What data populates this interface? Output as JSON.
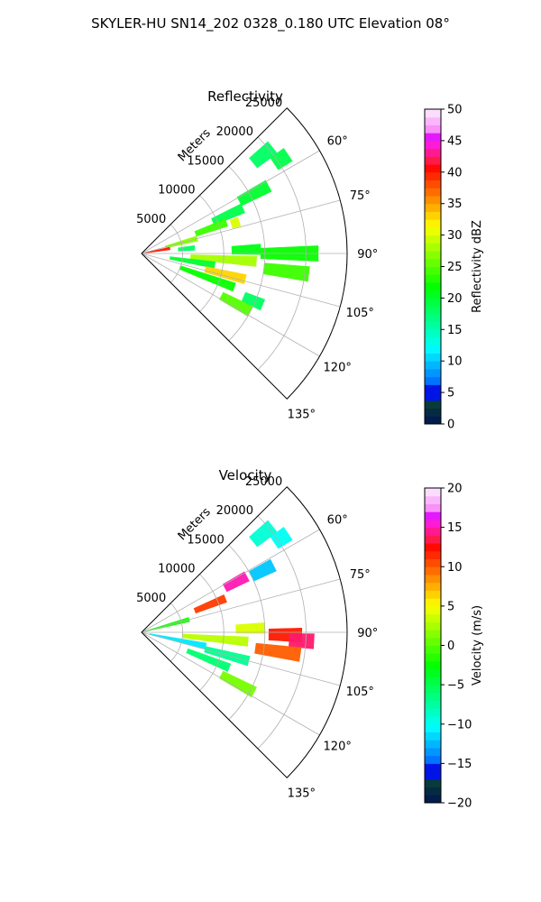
{
  "figure": {
    "suptitle": "SKYLER-HU  SN14_202  0328_0.180 UTC Elevation 08°"
  },
  "chart_data": [
    {
      "type": "heatmap",
      "title": "Reflectivity",
      "projection": "polar-sector",
      "range_axis_label": "Meters",
      "range_ticks": [
        "5000",
        "10000",
        "15000",
        "20000",
        "25000"
      ],
      "range_tick_values": [
        5000,
        10000,
        15000,
        20000,
        25000
      ],
      "range_max": 25000,
      "azimuth_ticks": [
        "60°",
        "75°",
        "90°",
        "105°",
        "120°",
        "135°"
      ],
      "azimuth_tick_values": [
        60,
        75,
        90,
        105,
        120,
        135
      ],
      "azimuth_range": [
        45,
        135
      ],
      "grid": true,
      "colorbar": {
        "label": "Reflectivity dBZ",
        "min": 0,
        "max": 50,
        "ticks": [
          "0",
          "5",
          "10",
          "15",
          "20",
          "25",
          "30",
          "35",
          "40",
          "45",
          "50"
        ],
        "tick_values": [
          0,
          5,
          10,
          15,
          20,
          25,
          30,
          35,
          40,
          45,
          50
        ]
      },
      "echoes": [
        {
          "az": 51,
          "r0": 17500,
          "r1": 20500,
          "v": 18
        },
        {
          "az": 56,
          "r0": 19500,
          "r1": 21500,
          "v": 19
        },
        {
          "az": 62,
          "r0": 13500,
          "r1": 17500,
          "v": 20
        },
        {
          "az": 66,
          "r0": 9500,
          "r1": 13500,
          "v": 19
        },
        {
          "az": 70,
          "r0": 7000,
          "r1": 11000,
          "v": 24
        },
        {
          "az": 72,
          "r0": 11500,
          "r1": 12500,
          "v": 30
        },
        {
          "az": 75,
          "r0": 3000,
          "r1": 7000,
          "v": 27
        },
        {
          "az": 80,
          "r0": 500,
          "r1": 3500,
          "v": 40
        },
        {
          "az": 84,
          "r0": 4500,
          "r1": 6500,
          "v": 18
        },
        {
          "az": 88,
          "r0": 11000,
          "r1": 14500,
          "v": 21
        },
        {
          "az": 90,
          "r0": 14500,
          "r1": 21500,
          "v": 22
        },
        {
          "az": 94,
          "r0": 6000,
          "r1": 14000,
          "v": 28
        },
        {
          "az": 97,
          "r0": 15000,
          "r1": 20500,
          "v": 24
        },
        {
          "az": 99,
          "r0": 3500,
          "r1": 9000,
          "v": 20
        },
        {
          "az": 104,
          "r0": 8000,
          "r1": 13000,
          "v": 33
        },
        {
          "az": 110,
          "r0": 5000,
          "r1": 12000,
          "v": 22
        },
        {
          "az": 113,
          "r0": 13500,
          "r1": 16000,
          "v": 18
        },
        {
          "az": 118,
          "r0": 11000,
          "r1": 15000,
          "v": 25
        }
      ]
    },
    {
      "type": "heatmap",
      "title": "Velocity",
      "projection": "polar-sector",
      "range_axis_label": "Meters",
      "range_ticks": [
        "5000",
        "10000",
        "15000",
        "20000",
        "25000"
      ],
      "range_tick_values": [
        5000,
        10000,
        15000,
        20000,
        25000
      ],
      "range_max": 25000,
      "azimuth_ticks": [
        "60°",
        "75°",
        "90°",
        "105°",
        "120°",
        "135°"
      ],
      "azimuth_tick_values": [
        60,
        75,
        90,
        105,
        120,
        135
      ],
      "azimuth_range": [
        45,
        135
      ],
      "grid": true,
      "colorbar": {
        "label": "Velocity (m/s)",
        "min": -20,
        "max": 20,
        "ticks": [
          "−20",
          "−15",
          "−10",
          "−5",
          "0",
          "5",
          "10",
          "15",
          "20"
        ],
        "tick_values": [
          -20,
          -15,
          -10,
          -5,
          0,
          5,
          10,
          15,
          20
        ]
      },
      "echoes": [
        {
          "az": 51,
          "r0": 17500,
          "r1": 20500,
          "v": -9
        },
        {
          "az": 56,
          "r0": 19500,
          "r1": 21500,
          "v": -10
        },
        {
          "az": 62,
          "r0": 11500,
          "r1": 14500,
          "v": 15
        },
        {
          "az": 63,
          "r0": 15000,
          "r1": 18000,
          "v": -12
        },
        {
          "az": 68,
          "r0": 7000,
          "r1": 11000,
          "v": 11
        },
        {
          "az": 75,
          "r0": 500,
          "r1": 6000,
          "v": -2
        },
        {
          "az": 88,
          "r0": 11500,
          "r1": 15000,
          "v": 4
        },
        {
          "az": 91,
          "r0": 15500,
          "r1": 19500,
          "v": 12
        },
        {
          "az": 93,
          "r0": 18000,
          "r1": 21000,
          "v": 14
        },
        {
          "az": 95,
          "r0": 5000,
          "r1": 13000,
          "v": 3
        },
        {
          "az": 98,
          "r0": 14000,
          "r1": 19500,
          "v": 10
        },
        {
          "az": 102,
          "r0": 1000,
          "r1": 8000,
          "v": -11
        },
        {
          "az": 105,
          "r0": 8000,
          "r1": 13500,
          "v": -7
        },
        {
          "az": 112,
          "r0": 6000,
          "r1": 11500,
          "v": -6
        },
        {
          "az": 118,
          "r0": 11000,
          "r1": 15500,
          "v": 1
        }
      ]
    }
  ]
}
